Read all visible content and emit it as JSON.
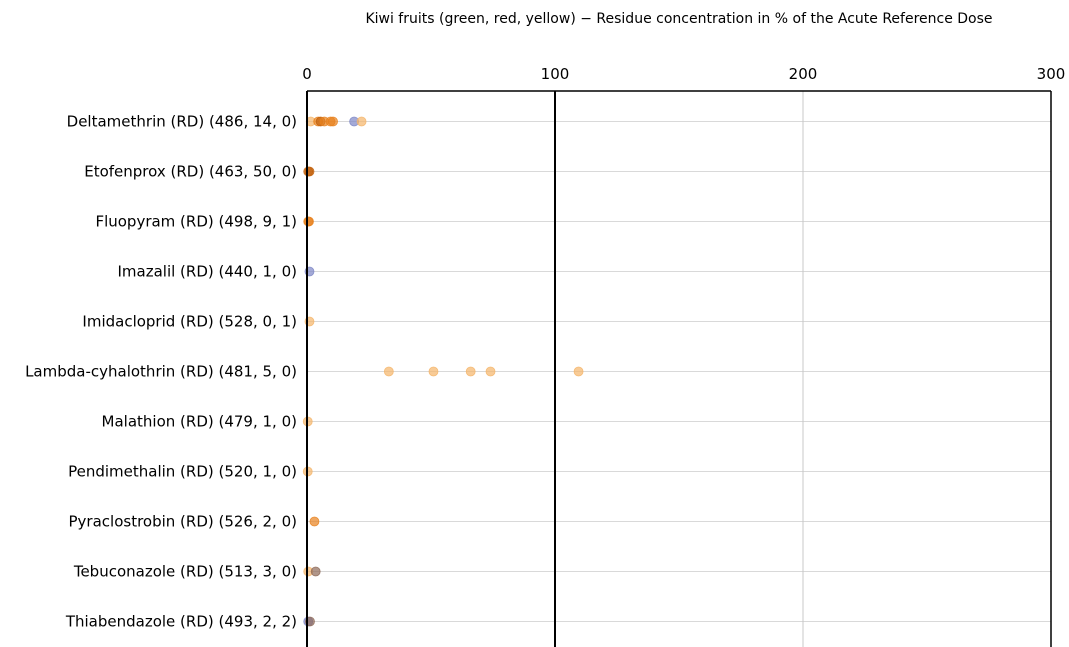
{
  "chart_data": {
    "type": "scatter",
    "title": "Kiwi fruits (green, red, yellow) − Residue concentration in % of the Acute Reference Dose",
    "xlabel": "",
    "ylabel": "",
    "xlim": [
      0,
      300
    ],
    "xticks": [
      0,
      100,
      200,
      300
    ],
    "grid": true,
    "legend": "none",
    "reference_line": 100,
    "colors": {
      "light_orange": "#f5b56a",
      "orange": "#e8821e",
      "dark_orange": "#c2600a",
      "blue": "#7d86c6",
      "brown": "#8e6a58"
    },
    "categories": [
      "Deltamethrin (RD) (486,  14,  0)",
      "Etofenprox (RD) (463,  50,  0)",
      "Fluopyram (RD) (498,  9,  1)",
      "Imazalil (RD) (440,  1,  0)",
      "Imidacloprid (RD) (528,  0,  1)",
      "Lambda-cyhalothrin (RD) (481,  5,  0)",
      "Malathion (RD) (479,  1,  0)",
      "Pendimethalin (RD) (520,  1,  0)",
      "Pyraclostrobin (RD) (526,  2,  0)",
      "Tebuconazole (RD) (513,  3,  0)",
      "Thiabendazole (RD) (493,  2,  2)"
    ],
    "points": [
      {
        "category": 0,
        "x": 1.5,
        "color": "light_orange"
      },
      {
        "category": 0,
        "x": 4.5,
        "color": "orange"
      },
      {
        "category": 0,
        "x": 5.5,
        "color": "dark_orange"
      },
      {
        "category": 0,
        "x": 7.0,
        "color": "orange"
      },
      {
        "category": 0,
        "x": 9.5,
        "color": "orange"
      },
      {
        "category": 0,
        "x": 10.5,
        "color": "orange"
      },
      {
        "category": 0,
        "x": 19.0,
        "color": "blue"
      },
      {
        "category": 0,
        "x": 22.0,
        "color": "light_orange"
      },
      {
        "category": 1,
        "x": 0.5,
        "color": "dark_orange"
      },
      {
        "category": 1,
        "x": 1.0,
        "color": "dark_orange"
      },
      {
        "category": 2,
        "x": 0.5,
        "color": "orange"
      },
      {
        "category": 2,
        "x": 0.8,
        "color": "orange"
      },
      {
        "category": 3,
        "x": 1.0,
        "color": "blue"
      },
      {
        "category": 4,
        "x": 1.0,
        "color": "light_orange"
      },
      {
        "category": 5,
        "x": 33.0,
        "color": "light_orange"
      },
      {
        "category": 5,
        "x": 51.0,
        "color": "light_orange"
      },
      {
        "category": 5,
        "x": 66.0,
        "color": "light_orange"
      },
      {
        "category": 5,
        "x": 74.0,
        "color": "light_orange"
      },
      {
        "category": 5,
        "x": 109.5,
        "color": "light_orange"
      },
      {
        "category": 6,
        "x": 0.3,
        "color": "light_orange"
      },
      {
        "category": 7,
        "x": 0.3,
        "color": "light_orange"
      },
      {
        "category": 8,
        "x": 3.0,
        "color": "orange"
      },
      {
        "category": 9,
        "x": 0.5,
        "color": "light_orange"
      },
      {
        "category": 9,
        "x": 3.5,
        "color": "brown"
      },
      {
        "category": 10,
        "x": 0.5,
        "color": "blue"
      },
      {
        "category": 10,
        "x": 1.2,
        "color": "brown"
      }
    ]
  }
}
